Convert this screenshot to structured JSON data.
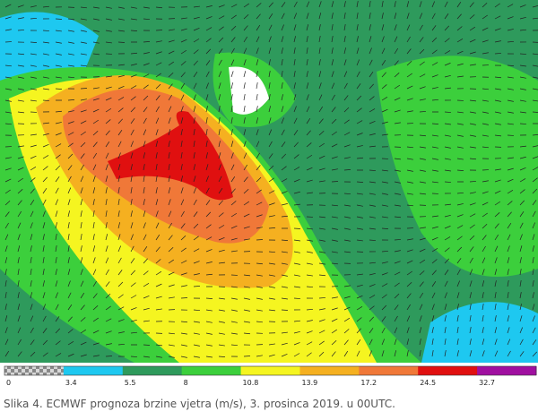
{
  "colorbar": {
    "ticks": [
      "0",
      "3.4",
      "5.5",
      "8",
      "10.8",
      "13.9",
      "17.2",
      "24.5",
      "32.7"
    ],
    "colors": [
      "#1ec8f0",
      "#2e9a5c",
      "#3ccf3c",
      "#f5f520",
      "#f5b020",
      "#f07838",
      "#e01010",
      "#a010a0"
    ]
  },
  "caption": "Slika 4. ECMWF prognoza brzine vjetra (m/s), 3. prosinca 2019. u 00UTC."
}
